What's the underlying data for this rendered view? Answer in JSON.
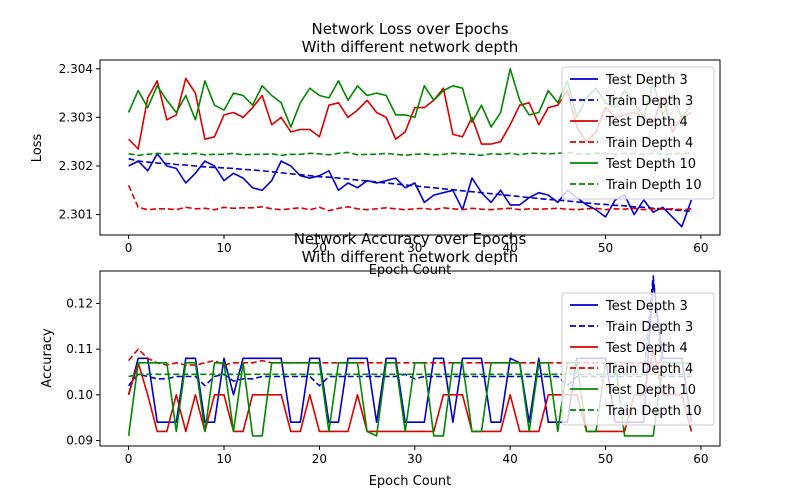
{
  "chart_data": [
    {
      "type": "line",
      "title": "Network Loss over Epochs",
      "subtitle": "With different network depth",
      "xlabel": "Epoch Count",
      "ylabel": "Loss",
      "xlim": [
        -3,
        62
      ],
      "ylim": [
        2.30058,
        2.30418
      ],
      "x_ticks": [
        0,
        10,
        20,
        30,
        40,
        50,
        60
      ],
      "y_ticks": [
        2.301,
        2.302,
        2.303,
        2.304
      ],
      "y_tick_labels": [
        "2.301",
        "2.302",
        "2.303",
        "2.304"
      ],
      "grid": false,
      "legend_position": "top-right",
      "series": [
        {
          "name": "Test Depth 3",
          "color": "#0000cc",
          "dash": "solid",
          "values": [
            2.302,
            2.3021,
            2.3019,
            2.30225,
            2.302,
            2.30195,
            2.30165,
            2.30185,
            2.3021,
            2.302,
            2.3017,
            2.30185,
            2.30175,
            2.30155,
            2.3015,
            2.3017,
            2.3021,
            2.302,
            2.3018,
            2.30175,
            2.3018,
            2.3019,
            2.3015,
            2.30165,
            2.30155,
            2.3017,
            2.30165,
            2.3017,
            2.30175,
            2.30155,
            2.30165,
            2.30125,
            2.3014,
            2.30145,
            2.3015,
            2.3011,
            2.30175,
            2.30145,
            2.30125,
            2.3015,
            2.3012,
            2.3012,
            2.30135,
            2.30145,
            2.3014,
            2.30125,
            2.3015,
            2.30135,
            2.3012,
            2.3011,
            2.30095,
            2.3013,
            2.3014,
            2.301,
            2.3013,
            2.30105,
            2.30115,
            2.30095,
            2.30075,
            2.3013
          ]
        },
        {
          "name": "Train Depth 3",
          "color": "#0000cc",
          "dash": "dashed",
          "values": [
            2.30215,
            2.3021,
            2.30208,
            2.30206,
            2.30205,
            2.30203,
            2.30202,
            2.302,
            2.30198,
            2.30197,
            2.30196,
            2.30195,
            2.30193,
            2.30192,
            2.3019,
            2.30188,
            2.30186,
            2.30184,
            2.30182,
            2.3018,
            2.30178,
            2.30177,
            2.30175,
            2.30173,
            2.30171,
            2.30169,
            2.30167,
            2.30165,
            2.30163,
            2.30161,
            2.30159,
            2.30157,
            2.30155,
            2.30153,
            2.30151,
            2.30149,
            2.30147,
            2.30145,
            2.30143,
            2.30141,
            2.30139,
            2.30137,
            2.30135,
            2.30133,
            2.30131,
            2.3013,
            2.30128,
            2.30126,
            2.30124,
            2.30122,
            2.30121,
            2.30119,
            2.30118,
            2.30116,
            2.30115,
            2.30113,
            2.30112,
            2.3011,
            2.30108,
            2.30107
          ]
        },
        {
          "name": "Test Depth 4",
          "color": "#dd0000",
          "dash": "solid",
          "values": [
            2.30255,
            2.30235,
            2.3034,
            2.30375,
            2.30295,
            2.30305,
            2.3038,
            2.3035,
            2.30255,
            2.3026,
            2.30305,
            2.3031,
            2.303,
            2.3032,
            2.30345,
            2.30285,
            2.303,
            2.3027,
            2.30275,
            2.30275,
            2.3026,
            2.30325,
            2.3033,
            2.303,
            2.30315,
            2.30335,
            2.3031,
            2.303,
            2.30255,
            2.3027,
            2.3032,
            2.3032,
            2.30335,
            2.3036,
            2.30265,
            2.3026,
            2.303,
            2.30245,
            2.30245,
            2.3025,
            2.30285,
            2.30325,
            2.3033,
            2.30285,
            2.3032,
            2.30325,
            2.30355,
            2.3028,
            2.3025,
            2.3027,
            2.3032,
            2.303,
            2.30305,
            2.3031,
            2.303,
            2.3029,
            2.3034,
            2.3027,
            2.303,
            2.3031
          ]
        },
        {
          "name": "Train Depth 4",
          "color": "#dd0000",
          "dash": "dashed",
          "values": [
            2.3016,
            2.30115,
            2.3011,
            2.30112,
            2.30112,
            2.3011,
            2.30115,
            2.30112,
            2.30113,
            2.3011,
            2.30115,
            2.30113,
            2.30114,
            2.30114,
            2.30116,
            2.30112,
            2.3011,
            2.30112,
            2.30114,
            2.3011,
            2.30115,
            2.30108,
            2.30113,
            2.30116,
            2.30112,
            2.3011,
            2.30112,
            2.30114,
            2.30112,
            2.3011,
            2.30112,
            2.30113,
            2.3011,
            2.30114,
            2.30112,
            2.3011,
            2.30113,
            2.30111,
            2.3011,
            2.30112,
            2.30113,
            2.3011,
            2.30112,
            2.30111,
            2.30112,
            2.30113,
            2.30111,
            2.3011,
            2.30112,
            2.30113,
            2.3011,
            2.30112,
            2.30111,
            2.30113,
            2.3011,
            2.30112,
            2.30111,
            2.30112,
            2.3011,
            2.30112
          ]
        },
        {
          "name": "Test Depth 10",
          "color": "#008800",
          "dash": "solid",
          "values": [
            2.3031,
            2.30355,
            2.3032,
            2.30365,
            2.30335,
            2.3031,
            2.30345,
            2.30295,
            2.30375,
            2.30325,
            2.30315,
            2.3035,
            2.30345,
            2.30325,
            2.30365,
            2.30345,
            2.3033,
            2.3028,
            2.3033,
            2.3036,
            2.30345,
            2.3034,
            2.30375,
            2.30335,
            2.30365,
            2.30345,
            2.3035,
            2.30345,
            2.30305,
            2.30305,
            2.303,
            2.30365,
            2.30335,
            2.30355,
            2.30365,
            2.3036,
            2.3029,
            2.30325,
            2.3028,
            2.3031,
            2.304,
            2.30335,
            2.30305,
            2.3031,
            2.30355,
            2.3033,
            2.30375,
            2.303,
            2.3034,
            2.3036,
            2.3033,
            2.3032,
            2.30355,
            2.3033,
            2.303,
            2.3037,
            2.30305,
            2.30345,
            2.303,
            2.30325
          ]
        },
        {
          "name": "Train Depth 10",
          "color": "#008800",
          "dash": "dashed",
          "values": [
            2.30225,
            2.30222,
            2.30224,
            2.30226,
            2.30224,
            2.30226,
            2.30224,
            2.30226,
            2.30223,
            2.30224,
            2.30224,
            2.30226,
            2.30223,
            2.30224,
            2.30224,
            2.30225,
            2.30222,
            2.30224,
            2.30224,
            2.30226,
            2.30225,
            2.30223,
            2.30226,
            2.30228,
            2.30223,
            2.30224,
            2.30224,
            2.30226,
            2.30224,
            2.30222,
            2.30224,
            2.30225,
            2.30223,
            2.30224,
            2.30226,
            2.30225,
            2.30224,
            2.30222,
            2.30225,
            2.30224,
            2.30226,
            2.30223,
            2.30226,
            2.30226,
            2.30225,
            2.30226,
            2.30228,
            2.30225,
            2.30224,
            2.30226,
            2.30226,
            2.30224,
            2.30226,
            2.30225,
            2.30224,
            2.30226,
            2.30224,
            2.30225,
            2.30226,
            2.30226
          ]
        }
      ]
    },
    {
      "type": "line",
      "title": "Network Accuracy over Epochs",
      "subtitle": "With different network depth",
      "xlabel": "Epoch Count",
      "ylabel": "Accuracy",
      "xlim": [
        -3,
        62
      ],
      "ylim": [
        0.0888,
        0.1271
      ],
      "x_ticks": [
        0,
        10,
        20,
        30,
        40,
        50,
        60
      ],
      "y_ticks": [
        0.09,
        0.1,
        0.11,
        0.12
      ],
      "y_tick_labels": [
        "0.09",
        "0.10",
        "0.11",
        "0.12"
      ],
      "grid": false,
      "legend_position": "top-right",
      "series": [
        {
          "name": "Test Depth 3",
          "color": "#0000cc",
          "dash": "solid",
          "values": [
            0.1,
            0.108,
            0.108,
            0.094,
            0.094,
            0.094,
            0.108,
            0.108,
            0.094,
            0.094,
            0.108,
            0.1,
            0.108,
            0.108,
            0.108,
            0.108,
            0.108,
            0.094,
            0.094,
            0.108,
            0.108,
            0.094,
            0.094,
            0.108,
            0.108,
            0.108,
            0.094,
            0.108,
            0.108,
            0.094,
            0.094,
            0.094,
            0.108,
            0.108,
            0.094,
            0.108,
            0.108,
            0.108,
            0.094,
            0.094,
            0.108,
            0.107,
            0.094,
            0.108,
            0.094,
            0.094,
            0.094,
            0.108,
            0.108,
            0.108,
            0.108,
            0.094,
            0.094,
            0.094,
            0.094,
            0.125,
            0.108,
            0.108,
            0.108,
            0.094
          ]
        },
        {
          "name": "Train Depth 3",
          "color": "#0000cc",
          "dash": "dashed",
          "values": [
            0.102,
            0.1045,
            0.104,
            0.1035,
            0.1035,
            0.104,
            0.104,
            0.104,
            0.102,
            0.104,
            0.1045,
            0.103,
            0.1035,
            0.1035,
            0.104,
            0.104,
            0.104,
            0.104,
            0.104,
            0.104,
            0.102,
            0.104,
            0.104,
            0.104,
            0.104,
            0.104,
            0.104,
            0.104,
            0.104,
            0.1045,
            0.1035,
            0.104,
            0.104,
            0.104,
            0.104,
            0.104,
            0.104,
            0.104,
            0.104,
            0.104,
            0.104,
            0.104,
            0.104,
            0.104,
            0.104,
            0.104,
            0.102,
            0.104,
            0.104,
            0.104,
            0.104,
            0.104,
            0.104,
            0.104,
            0.104,
            0.126,
            0.104,
            0.104,
            0.104,
            0.104
          ]
        },
        {
          "name": "Test Depth 4",
          "color": "#dd0000",
          "dash": "solid",
          "values": [
            0.1,
            0.107,
            0.1,
            0.092,
            0.092,
            0.1,
            0.092,
            0.1,
            0.092,
            0.1,
            0.1,
            0.092,
            0.092,
            0.1,
            0.1,
            0.1,
            0.1,
            0.092,
            0.092,
            0.1,
            0.092,
            0.092,
            0.092,
            0.092,
            0.1,
            0.092,
            0.092,
            0.092,
            0.092,
            0.092,
            0.092,
            0.092,
            0.092,
            0.1,
            0.1,
            0.1,
            0.092,
            0.092,
            0.092,
            0.092,
            0.1,
            0.092,
            0.092,
            0.092,
            0.1,
            0.1,
            0.1,
            0.1,
            0.092,
            0.092,
            0.092,
            0.092,
            0.092,
            0.1,
            0.1,
            0.11,
            0.1,
            0.1,
            0.1,
            0.092
          ]
        },
        {
          "name": "Train Depth 4",
          "color": "#dd0000",
          "dash": "dashed",
          "values": [
            0.1075,
            0.11,
            0.108,
            0.107,
            0.1065,
            0.107,
            0.1065,
            0.1065,
            0.107,
            0.1075,
            0.1065,
            0.107,
            0.107,
            0.107,
            0.1075,
            0.107,
            0.107,
            0.107,
            0.107,
            0.107,
            0.107,
            0.107,
            0.107,
            0.107,
            0.107,
            0.107,
            0.107,
            0.107,
            0.107,
            0.107,
            0.107,
            0.107,
            0.107,
            0.107,
            0.107,
            0.107,
            0.107,
            0.107,
            0.107,
            0.107,
            0.107,
            0.107,
            0.107,
            0.107,
            0.107,
            0.107,
            0.107,
            0.107,
            0.107,
            0.107,
            0.107,
            0.107,
            0.107,
            0.107,
            0.107,
            0.107,
            0.107,
            0.107,
            0.107,
            0.107
          ]
        },
        {
          "name": "Test Depth 10",
          "color": "#008800",
          "dash": "solid",
          "values": [
            0.091,
            0.107,
            0.107,
            0.107,
            0.107,
            0.092,
            0.107,
            0.107,
            0.092,
            0.107,
            0.107,
            0.092,
            0.107,
            0.091,
            0.091,
            0.107,
            0.107,
            0.107,
            0.107,
            0.107,
            0.107,
            0.092,
            0.107,
            0.107,
            0.107,
            0.092,
            0.091,
            0.107,
            0.107,
            0.092,
            0.107,
            0.107,
            0.091,
            0.091,
            0.107,
            0.107,
            0.092,
            0.092,
            0.107,
            0.107,
            0.107,
            0.107,
            0.092,
            0.107,
            0.107,
            0.092,
            0.107,
            0.107,
            0.092,
            0.092,
            0.107,
            0.107,
            0.091,
            0.091,
            0.091,
            0.091,
            0.107,
            0.107,
            0.107,
            0.107
          ]
        },
        {
          "name": "Train Depth 10",
          "color": "#008800",
          "dash": "dashed",
          "values": [
            0.104,
            0.1045,
            0.1045,
            0.1045,
            0.1045,
            0.1045,
            0.1045,
            0.1045,
            0.1045,
            0.1045,
            0.1045,
            0.1045,
            0.1045,
            0.1045,
            0.1045,
            0.1045,
            0.1045,
            0.1045,
            0.1045,
            0.1045,
            0.1045,
            0.1045,
            0.1045,
            0.1045,
            0.1045,
            0.1045,
            0.1045,
            0.1045,
            0.1045,
            0.1045,
            0.1045,
            0.1045,
            0.1045,
            0.1045,
            0.1045,
            0.1045,
            0.1045,
            0.1045,
            0.1045,
            0.1045,
            0.1045,
            0.1045,
            0.1045,
            0.1045,
            0.1045,
            0.1045,
            0.1045,
            0.1045,
            0.1045,
            0.1045,
            0.1045,
            0.1045,
            0.1045,
            0.1045,
            0.1045,
            0.1045,
            0.1045,
            0.1045,
            0.1045,
            0.1045
          ]
        }
      ]
    }
  ]
}
